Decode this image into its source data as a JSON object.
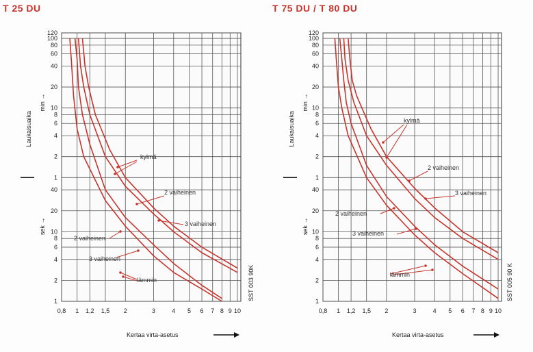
{
  "chart_data": [
    {
      "type": "line",
      "title": "T 25 DU",
      "xlabel": "Kertaa virta-asetus",
      "ylabel": "Laukaisuaika",
      "xscale": "log",
      "yscale": "log",
      "x_ticks": [
        0.8,
        1,
        1.2,
        1.5,
        2,
        3,
        4,
        5,
        6,
        7,
        8,
        9,
        10
      ],
      "x_tick_labels": [
        "0,8",
        "1",
        "1,2",
        "1,5",
        "2",
        "3",
        "4",
        "5",
        "6",
        "7",
        "8",
        "9",
        "10"
      ],
      "y_ticks_min": [
        "120",
        "100",
        "80",
        "60",
        "40",
        "20",
        "10",
        "8",
        "6",
        "4",
        "2",
        "1"
      ],
      "y_ticks_sec": [
        "40",
        "20",
        "10",
        "8",
        "6",
        "4",
        "2",
        "1"
      ],
      "unit_min": "min",
      "unit_sec": "sek",
      "code": "SST 003 90K",
      "annotations": [
        "kylmä",
        "2 vaiheinen",
        "3 vaiheinen",
        "2 vaiheinen",
        "3 vaiheinen",
        "lämmin"
      ],
      "series": [
        {
          "x": [
            1.02,
            1.05,
            1.1,
            1.2,
            1.5,
            2,
            3,
            4,
            6,
            10
          ],
          "y_seconds": [
            6000,
            2400,
            1200,
            480,
            120,
            45,
            18,
            10,
            5,
            2.6
          ]
        },
        {
          "x": [
            1.08,
            1.12,
            1.18,
            1.3,
            1.6,
            2,
            3,
            4,
            6,
            10
          ],
          "y_seconds": [
            6000,
            2400,
            1200,
            480,
            150,
            60,
            22,
            12,
            6,
            3
          ]
        },
        {
          "x": [
            0.9,
            0.92,
            0.95,
            1.0,
            1.1,
            1.5,
            2,
            3,
            4,
            6,
            8
          ],
          "y_seconds": [
            6000,
            3000,
            900,
            300,
            120,
            28,
            12,
            4.5,
            2.6,
            1.5,
            1
          ]
        },
        {
          "x": [
            0.97,
            1.0,
            1.02,
            1.08,
            1.2,
            1.5,
            2,
            3,
            4,
            6,
            8
          ],
          "y_seconds": [
            6000,
            3000,
            1200,
            480,
            180,
            40,
            16,
            6.5,
            3.5,
            1.7,
            1.1
          ]
        }
      ]
    },
    {
      "type": "line",
      "title": "T 75 DU / T 80 DU",
      "xlabel": "Kertaa virta-asetus",
      "ylabel": "Laukaisuaika",
      "xscale": "log",
      "yscale": "log",
      "x_ticks": [
        0.8,
        1,
        1.2,
        1.5,
        2,
        3,
        4,
        5,
        6,
        7,
        8,
        9,
        10
      ],
      "x_tick_labels": [
        "0,8",
        "1",
        "1,2",
        "1,5",
        "2",
        "3",
        "4",
        "5",
        "6",
        "7",
        "8",
        "9",
        "10"
      ],
      "y_ticks_min": [
        "120",
        "100",
        "80",
        "60",
        "40",
        "20",
        "10",
        "8",
        "6",
        "4",
        "2",
        "1"
      ],
      "y_ticks_sec": [
        "40",
        "20",
        "10",
        "8",
        "6",
        "4",
        "2",
        "1"
      ],
      "unit_min": "min",
      "unit_sec": "sek",
      "code": "SST 005 90 K",
      "annotations": [
        "kylmä",
        "2 vaiheinen",
        "3 vaiheinen",
        "2 vaiheinen",
        "3 vaiheinen",
        "lämmin"
      ],
      "series": [
        {
          "x": [
            1.08,
            1.1,
            1.15,
            1.25,
            1.5,
            2,
            3,
            4,
            6,
            10
          ],
          "y_seconds": [
            6000,
            3000,
            1500,
            720,
            240,
            90,
            30,
            16,
            8,
            4
          ]
        },
        {
          "x": [
            1.15,
            1.18,
            1.22,
            1.3,
            1.6,
            2,
            3,
            4,
            6,
            10
          ],
          "y_seconds": [
            6000,
            3000,
            1500,
            900,
            300,
            120,
            42,
            22,
            10,
            5
          ]
        },
        {
          "x": [
            0.95,
            0.97,
            1.0,
            1.05,
            1.15,
            1.5,
            2,
            3,
            4,
            6,
            10
          ],
          "y_seconds": [
            6000,
            3000,
            1200,
            600,
            240,
            60,
            24,
            9,
            5,
            2.5,
            1.1
          ]
        },
        {
          "x": [
            1.02,
            1.05,
            1.08,
            1.12,
            1.2,
            1.5,
            2,
            3,
            4,
            6,
            10
          ],
          "y_seconds": [
            6000,
            3000,
            1500,
            720,
            360,
            90,
            32,
            12,
            6.5,
            3.2,
            1.5
          ]
        }
      ]
    }
  ]
}
